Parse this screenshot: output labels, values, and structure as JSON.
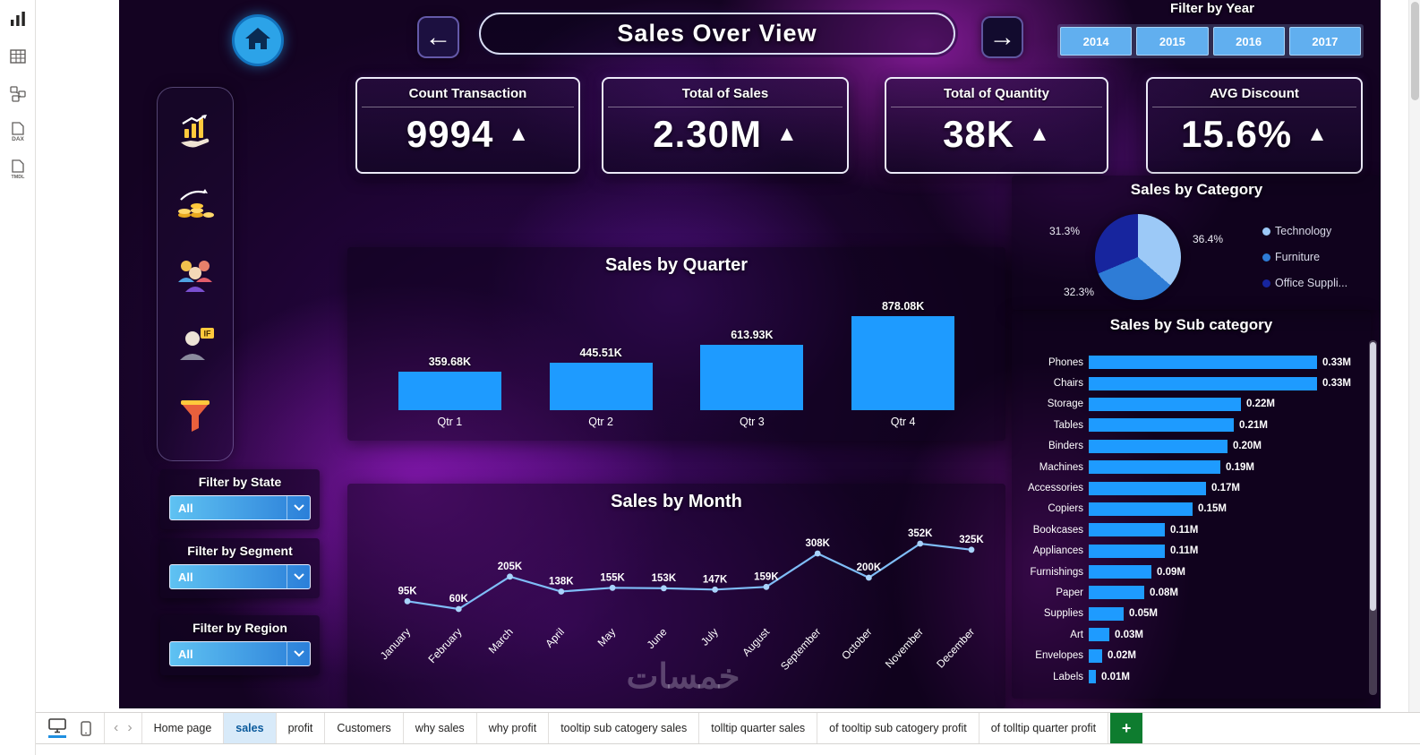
{
  "glyphs": {
    "up_triangle": "▲",
    "back_arrow": "←",
    "forward_arrow": "→",
    "tab_prev": "‹",
    "tab_next": "›"
  },
  "colors": {
    "bar_blue": "#1E9BFF",
    "accent_blue": "#61AFEF",
    "kpi_arrow_green": "#1B8A64"
  },
  "view_rail": {
    "items": [
      {
        "name": "report-view-icon"
      },
      {
        "name": "table-view-icon"
      },
      {
        "name": "model-view-icon"
      },
      {
        "name": "dax-query-view-icon"
      },
      {
        "name": "tmdl-view-icon"
      }
    ]
  },
  "header": {
    "title": "Sales Over View"
  },
  "filter_year": {
    "label": "Filter by Year",
    "options": [
      "2014",
      "2015",
      "2016",
      "2017"
    ]
  },
  "kpis": [
    {
      "label": "Count Transaction",
      "value": "9994"
    },
    {
      "label": "Total of Sales",
      "value": "2.30M"
    },
    {
      "label": "Total of Quantity",
      "value": "38K"
    },
    {
      "label": "AVG Discount",
      "value": "15.6%"
    }
  ],
  "side_icons": [
    {
      "name": "sales-hand-icon"
    },
    {
      "name": "profit-coins-icon"
    },
    {
      "name": "customers-group-icon"
    },
    {
      "name": "agent-if-icon"
    },
    {
      "name": "filter-funnel-icon"
    }
  ],
  "filters": [
    {
      "label": "Filter by State",
      "value": "All"
    },
    {
      "label": "Filter by Segment",
      "value": "All"
    },
    {
      "label": "Filter by Region",
      "value": "All"
    }
  ],
  "chart_data": [
    {
      "type": "bar",
      "title": "Sales by Quarter",
      "categories": [
        "Qtr 1",
        "Qtr 2",
        "Qtr 3",
        "Qtr 4"
      ],
      "values": [
        359.68,
        445.51,
        613.93,
        878.08
      ],
      "labels": [
        "359.68K",
        "445.51K",
        "613.93K",
        "878.08K"
      ],
      "unit": "K",
      "bar_color": "#1E9BFF",
      "ylim": [
        0,
        878.08
      ],
      "grid": false
    },
    {
      "type": "line",
      "title": "Sales by Month",
      "categories": [
        "January",
        "February",
        "March",
        "April",
        "May",
        "June",
        "July",
        "August",
        "September",
        "October",
        "November",
        "December"
      ],
      "values": [
        95,
        60,
        205,
        138,
        155,
        153,
        147,
        159,
        308,
        200,
        352,
        325
      ],
      "labels": [
        "95K",
        "60K",
        "205K",
        "138K",
        "155K",
        "153K",
        "147K",
        "159K",
        "308K",
        "200K",
        "352K",
        "325K"
      ],
      "unit": "K",
      "line_color": "#7FBDF7",
      "marker_color": "#A9D3FB",
      "ylim": [
        0,
        400
      ],
      "grid": false
    },
    {
      "type": "pie",
      "title": "Sales by Category",
      "legend_position": "right",
      "slices": [
        {
          "label": "Technology",
          "legend_label": "Technology",
          "value": 36.4,
          "display": "36.4%",
          "color": "#9CC9F7"
        },
        {
          "label": "Furniture",
          "legend_label": "Furniture",
          "value": 32.3,
          "display": "32.3%",
          "color": "#2E7CD6"
        },
        {
          "label": "Office Supplies",
          "legend_label": "Office Suppli...",
          "value": 31.3,
          "display": "31.3%",
          "color": "#17259E"
        }
      ]
    },
    {
      "type": "bar",
      "orientation": "horizontal",
      "title": "Sales by Sub category",
      "categories": [
        "Phones",
        "Chairs",
        "Storage",
        "Tables",
        "Binders",
        "Machines",
        "Accessories",
        "Copiers",
        "Bookcases",
        "Appliances",
        "Furnishings",
        "Paper",
        "Supplies",
        "Art",
        "Envelopes",
        "Labels"
      ],
      "values": [
        0.33,
        0.33,
        0.22,
        0.21,
        0.2,
        0.19,
        0.17,
        0.15,
        0.11,
        0.11,
        0.09,
        0.08,
        0.05,
        0.03,
        0.02,
        0.01
      ],
      "labels": [
        "0.33M",
        "0.33M",
        "0.22M",
        "0.21M",
        "0.20M",
        "0.19M",
        "0.17M",
        "0.15M",
        "0.11M",
        "0.11M",
        "0.09M",
        "0.08M",
        "0.05M",
        "0.03M",
        "0.02M",
        "0.01M"
      ],
      "unit": "M",
      "bar_color": "#1E9BFF",
      "xlim": [
        0,
        0.33
      ],
      "grid": false
    }
  ],
  "watermark": "خمسات",
  "footer": {
    "tabs": [
      {
        "label": "Home page",
        "active": false
      },
      {
        "label": "sales",
        "active": true
      },
      {
        "label": "profit",
        "active": false
      },
      {
        "label": "Customers",
        "active": false
      },
      {
        "label": "why sales",
        "active": false
      },
      {
        "label": "why profit",
        "active": false
      },
      {
        "label": "tooltip sub catogery sales",
        "active": false
      },
      {
        "label": "tolltip quarter sales",
        "active": false
      },
      {
        "label": "of tooltip sub catogery profit",
        "active": false
      },
      {
        "label": "of tolltip quarter profit",
        "active": false
      }
    ],
    "add_page_label": "+",
    "device_icons": [
      "desktop-view-icon",
      "phone-view-icon"
    ]
  }
}
